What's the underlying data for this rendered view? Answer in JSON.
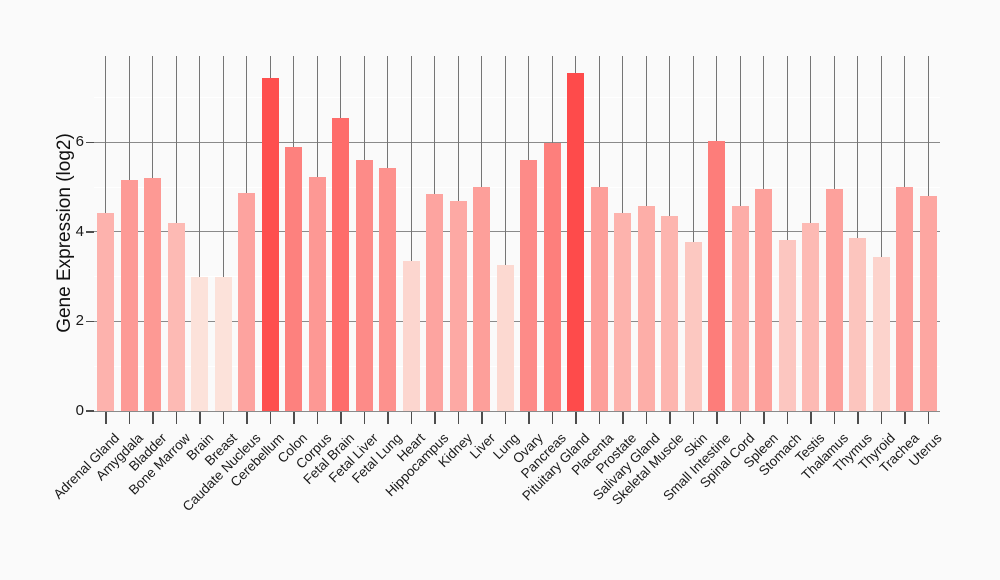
{
  "colors": {
    "background": "#fafafa",
    "grid_vertical": "#757575",
    "grid_major": "#8a8a8a",
    "grid_minor": "#ffffff",
    "axis_line": "#8a8a8a",
    "tick_mark": "#4d4d4d",
    "text": "#1a1a1a",
    "bar_color_low": "#fce2da",
    "bar_color_high": "#fe4b4b"
  },
  "chart_data": {
    "type": "bar",
    "title": "",
    "xlabel": "",
    "ylabel": "Gene Expression (log2)",
    "ylim": [
      0,
      7.93
    ],
    "yticks": [
      0,
      2,
      4,
      6
    ],
    "yticks_minor": [
      1,
      3,
      5,
      7
    ],
    "legend": "none",
    "grid": "vertical gray line per category; horizontal gray major lines at even values; white minor lines at odd values",
    "categories": [
      "Adrenal Gland",
      "Amygdala",
      "Bladder",
      "Bone Marrow",
      "Brain",
      "Breast",
      "Caudate Nucleus",
      "Cerebellum",
      "Colon",
      "Corpus",
      "Fetal Brain",
      "Fetal Liver",
      "Fetal Lung",
      "Heart",
      "Hippocampus",
      "Kidney",
      "Liver",
      "Lung",
      "Ovary",
      "Pancreas",
      "Pituitary Gland",
      "Placenta",
      "Prostate",
      "Salivary Gland",
      "Skeletal Muscle",
      "Skin",
      "Small Intestine",
      "Spinal Cord",
      "Spleen",
      "Stomach",
      "Testis",
      "Thalamus",
      "Thymus",
      "Thyroid",
      "Trachea",
      "Uterus"
    ],
    "values": [
      4.43,
      5.16,
      5.2,
      4.19,
      3.0,
      2.99,
      4.88,
      7.43,
      5.9,
      5.23,
      6.54,
      5.61,
      5.43,
      3.34,
      4.85,
      4.7,
      5.01,
      3.27,
      5.6,
      5.98,
      7.54,
      5.01,
      4.42,
      4.57,
      4.36,
      3.78,
      6.04,
      4.59,
      4.96,
      3.83,
      4.2,
      4.96,
      3.87,
      3.44,
      5.0,
      4.81
    ],
    "bar_colors": [
      "#fdb2ad",
      "#fd9a96",
      "#fd9994",
      "#fdbab4",
      "#fce2da",
      "#fce2da",
      "#fda39f",
      "#fe4f4e",
      "#fd817e",
      "#fd9894",
      "#fe6c6a",
      "#fd8b88",
      "#fd918d",
      "#fcd6cf",
      "#fda4a0",
      "#fda9a4",
      "#fd9f9a",
      "#fcd9d1",
      "#fd8b88",
      "#fd7f7c",
      "#fe4b4b",
      "#fd9f9a",
      "#fdb3ad",
      "#fdaea8",
      "#fdb5af",
      "#fcc8c1",
      "#fd7d7a",
      "#fdada8",
      "#fda19c",
      "#fcc6c0",
      "#fdbab4",
      "#fda19c",
      "#fcc5be",
      "#fcd3cc",
      "#fd9f9b",
      "#fda6a1"
    ]
  }
}
